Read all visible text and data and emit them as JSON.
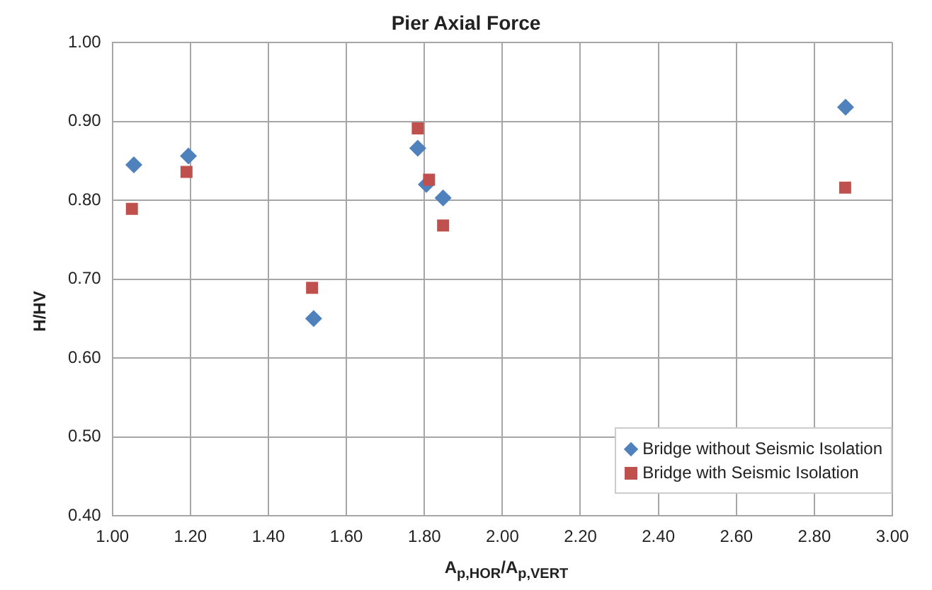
{
  "chart_data": {
    "type": "scatter",
    "title": "Pier Axial Force",
    "xlabel": "A$_{p,HOR}$/A$_{p,VERT}$",
    "ylabel": "H/HV",
    "xlim": [
      1,
      3
    ],
    "xticks": [
      {
        "value": 1,
        "label": "1.00"
      },
      {
        "value": 1.2,
        "label": "1.20"
      },
      {
        "value": 1.4,
        "label": "1.40"
      },
      {
        "value": 1.6,
        "label": "1.60"
      },
      {
        "value": 1.8,
        "label": "1.80"
      },
      {
        "value": 2,
        "label": "2.00"
      },
      {
        "value": 2.2,
        "label": "2.20"
      },
      {
        "value": 2.4,
        "label": "2.40"
      },
      {
        "value": 2.6,
        "label": "2.60"
      },
      {
        "value": 2.8,
        "label": "2.80"
      },
      {
        "value": 3,
        "label": "3.00"
      }
    ],
    "ylim": [
      0.4,
      1
    ],
    "yticks": [
      {
        "value": 0.4,
        "label": "0.40"
      },
      {
        "value": 0.5,
        "label": "0.50"
      },
      {
        "value": 0.6,
        "label": "0.60"
      },
      {
        "value": 0.7,
        "label": "0.70"
      },
      {
        "value": 0.8,
        "label": "0.80"
      },
      {
        "value": 0.9,
        "label": "0.90"
      },
      {
        "value": 1,
        "label": "1.00"
      }
    ],
    "grid": true,
    "legend": "bottom right",
    "series": [
      {
        "name": "Bridge without Seismic Isolation",
        "color": "#4f81bd",
        "marker": "diamond",
        "x": [
          1.055,
          1.195,
          1.516,
          1.783,
          1.805,
          1.848,
          2.88
        ],
        "values": [
          0.845,
          0.856,
          0.65,
          0.866,
          0.82,
          0.803,
          0.918
        ]
      },
      {
        "name": "Bridge with Seismic Isolation",
        "color": "#c0504d",
        "marker": "square",
        "x": [
          1.05,
          1.19,
          1.512,
          1.783,
          1.812,
          1.848,
          2.879
        ],
        "values": [
          0.789,
          0.836,
          0.689,
          0.891,
          0.826,
          0.768,
          0.816
        ]
      }
    ]
  }
}
